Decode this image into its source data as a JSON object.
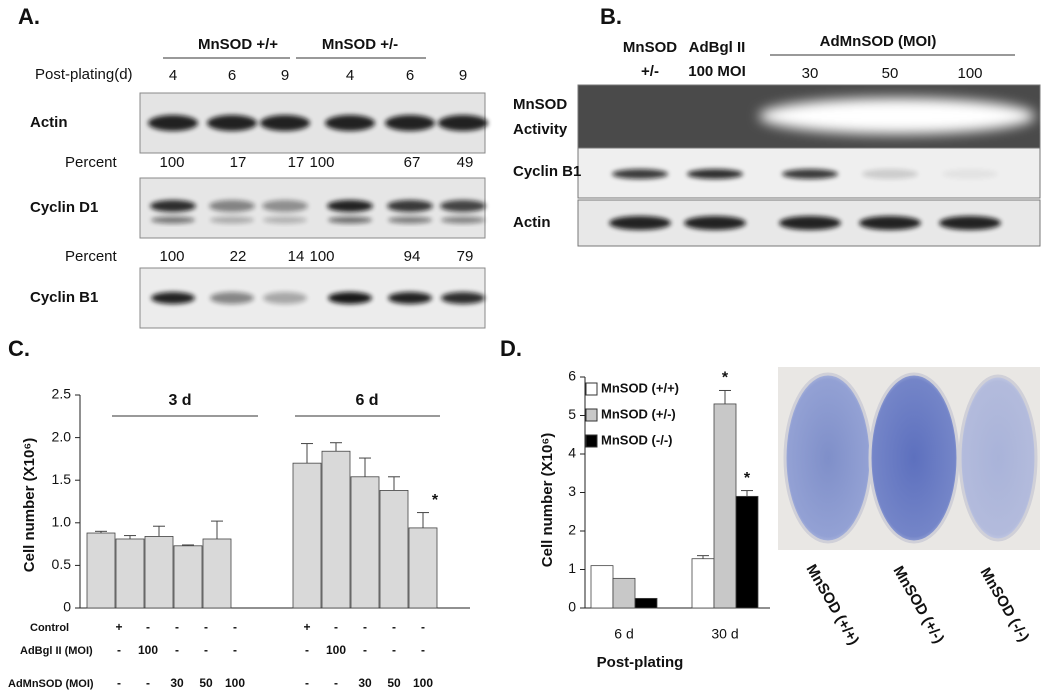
{
  "panel_a": {
    "label": "A.",
    "groups": [
      "MnSOD +/+",
      "MnSOD +/-"
    ],
    "days_label": "Post-plating(d)",
    "days": [
      4,
      6,
      9,
      4,
      6,
      9
    ],
    "blots": [
      "Actin",
      "Cyclin D1",
      "Cyclin B1"
    ],
    "percent_rows": [
      {
        "label": "Percent",
        "values": [
          100,
          17,
          17,
          100,
          67,
          49
        ]
      },
      {
        "label": "Percent",
        "values": [
          100,
          22,
          14,
          100,
          94,
          79
        ]
      }
    ]
  },
  "panel_b": {
    "label": "B.",
    "lanes": [
      [
        "MnSOD",
        "+/-"
      ],
      [
        "AdBgl II",
        "100 MOI"
      ]
    ],
    "group": "AdMnSOD (MOI)",
    "mois": [
      30,
      50,
      100
    ],
    "rows": [
      [
        "MnSOD",
        "Activity"
      ],
      [
        "Cyclin B1"
      ],
      [
        "Actin"
      ]
    ]
  },
  "panel_c_label": "C.",
  "panel_d_label": "D.",
  "chart_data": [
    {
      "type": "bar",
      "ylabel": "Cell number (X10⁶)",
      "ylim": [
        0,
        2.5
      ],
      "yticks": [
        0,
        0.5,
        {
          "value": 1,
          "label": "1.0"
        },
        1.5,
        {
          "value": 2,
          "label": "2.0"
        },
        2.5
      ],
      "groups": [
        "3 d",
        "6 d"
      ],
      "series": [
        {
          "color": "#d9d9d9",
          "values": [
            0.88,
            0.81,
            0.84,
            0.73,
            0.81,
            1.7,
            1.84,
            1.54,
            1.38,
            0.94
          ],
          "errors": [
            0.02,
            0.04,
            0.12,
            0.01,
            0.21,
            0.23,
            0.1,
            0.22,
            0.16,
            0.18
          ],
          "markers": [
            null,
            null,
            null,
            null,
            null,
            null,
            null,
            null,
            null,
            "*"
          ]
        }
      ],
      "treatments": [
        {
          "label": "Control",
          "cells": [
            "+",
            "-",
            "-",
            "-",
            "-",
            "+",
            "-",
            "-",
            "-",
            "-"
          ]
        },
        {
          "label": "AdBgl II (MOI)",
          "cells": [
            "-",
            "100",
            "-",
            "-",
            "-",
            "-",
            "100",
            "-",
            "-",
            "-"
          ]
        },
        {
          "label": "AdMnSOD (MOI)",
          "cells": [
            "-",
            "-",
            "30",
            "50",
            "100",
            "-",
            "-",
            "30",
            "50",
            "100"
          ]
        }
      ]
    },
    {
      "type": "bar",
      "ylabel": "Cell number (X10⁶)",
      "xlabel": "Post-plating",
      "categories": [
        "6 d",
        "30 d"
      ],
      "ylim": [
        0,
        6
      ],
      "yticks": [
        0,
        1,
        2,
        3,
        4,
        5,
        6
      ],
      "legend": "upper left",
      "series": [
        {
          "name": "MnSOD (+/+)",
          "color": "#ffffff",
          "values": [
            1.1,
            1.28
          ],
          "errors": [
            null,
            0.08
          ],
          "markers": [
            null,
            null
          ]
        },
        {
          "name": "MnSOD (+/-)",
          "color": "#c8c8c8",
          "values": [
            0.77,
            5.3
          ],
          "errors": [
            null,
            0.35
          ],
          "markers": [
            null,
            "*"
          ]
        },
        {
          "name": "MnSOD (-/-)",
          "color": "#000000",
          "values": [
            0.25,
            2.9
          ],
          "errors": [
            null,
            0.15
          ],
          "markers": [
            null,
            "*"
          ]
        }
      ]
    }
  ],
  "dishes": {
    "labels": [
      "MnSOD (+/+)",
      "MnSOD (+/-)",
      "MnSOD (-/-)"
    ]
  }
}
